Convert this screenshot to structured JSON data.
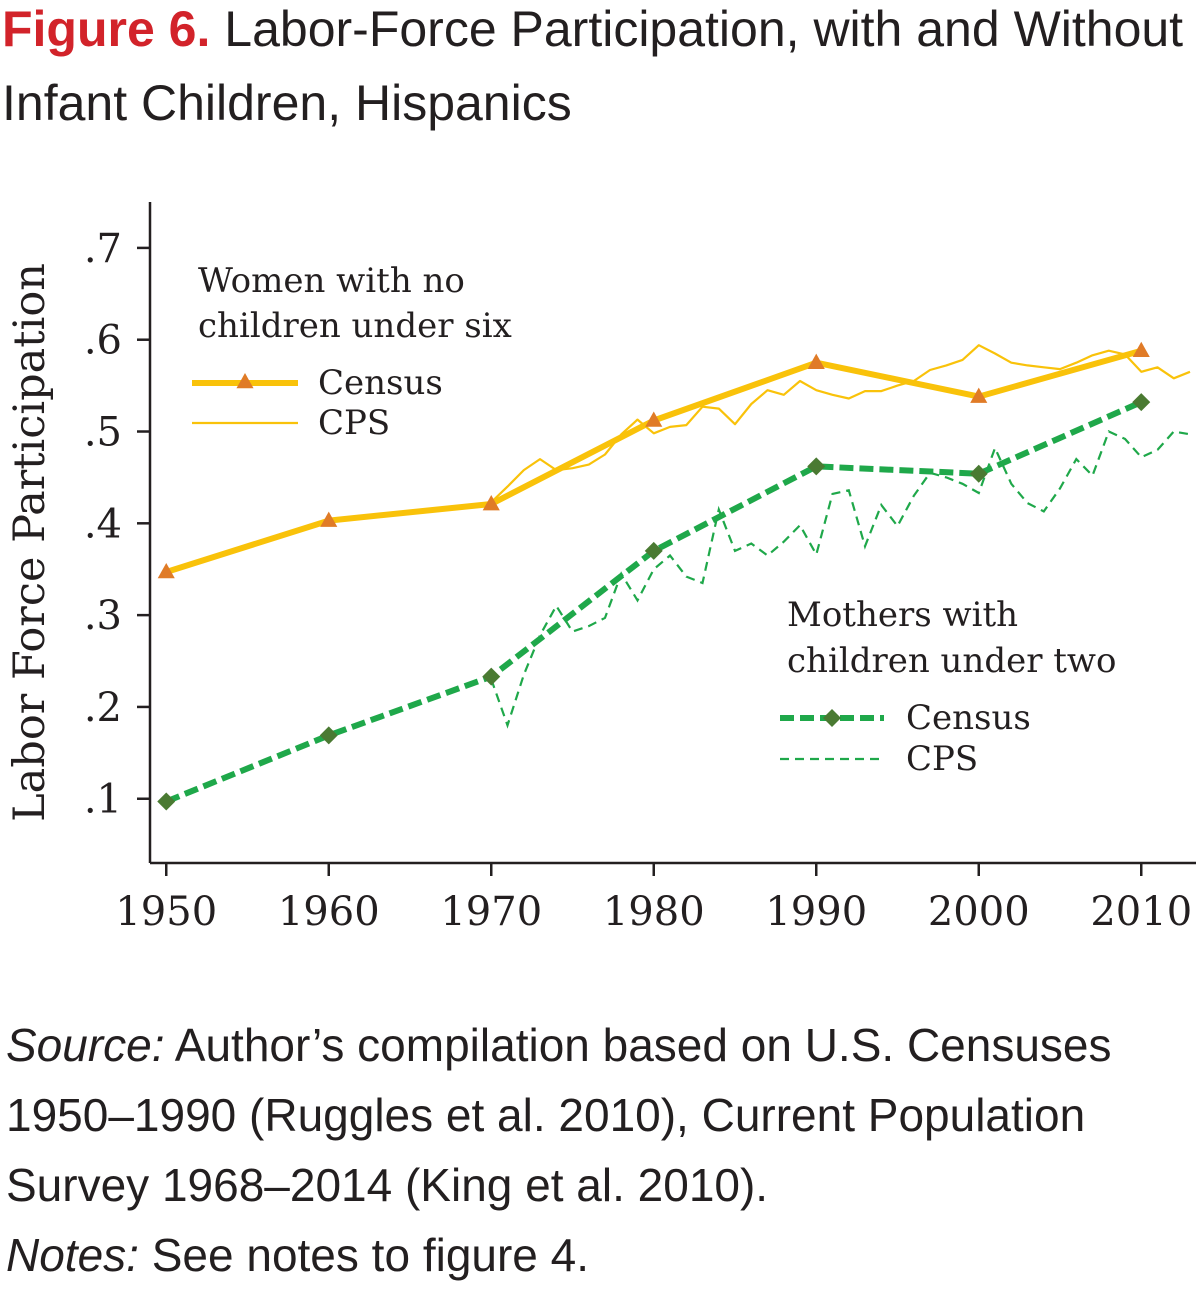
{
  "figure": {
    "label": "Figure 6.",
    "title": "Labor-Force Participation, with and Without Infant Children, Hispanics"
  },
  "footer": {
    "source_label": "Source:",
    "source_text": "Author’s compilation based on U.S. Censuses 1950–1990 (Ruggles et al. 2010), Current Population Survey 1968–2014 (King et al. 2010).",
    "notes_label": "Notes:",
    "notes_text": "See notes to figure 4."
  },
  "colors": {
    "yellow": "#f9c20a",
    "marker_orange": "#e07b27",
    "green": "#1fa84a",
    "marker_green": "#4a7a32",
    "axis": "#231f20"
  },
  "chart_data": {
    "type": "line",
    "title": "",
    "xlabel": "",
    "ylabel": "Labor Force Participation",
    "xlim": [
      1949,
      2013
    ],
    "ylim": [
      0.03,
      0.75
    ],
    "x_ticks": [
      1950,
      1960,
      1970,
      1980,
      1990,
      2000,
      2010
    ],
    "x_tick_labels": [
      "1950",
      "1960",
      "1970",
      "1980",
      "1990",
      "2000",
      "2010"
    ],
    "y_ticks": [
      0.1,
      0.2,
      0.3,
      0.4,
      0.5,
      0.6,
      0.7
    ],
    "y_tick_labels": [
      ".1",
      ".2",
      ".3",
      ".4",
      ".5",
      ".6",
      ".7"
    ],
    "grid": false,
    "legend_groups": [
      {
        "heading": [
          "Women with no",
          "children under six"
        ],
        "position": "top-left",
        "entries": [
          "Census",
          "CPS"
        ]
      },
      {
        "heading": [
          "Mothers with",
          "children under two"
        ],
        "position": "bottom-right",
        "entries": [
          "Census",
          "CPS"
        ]
      }
    ],
    "series": [
      {
        "name": "Census",
        "group": "Women with no children under six",
        "style": "thick-solid-triangle",
        "x": [
          1950,
          1960,
          1970,
          1980,
          1990,
          2000,
          2010
        ],
        "y": [
          0.347,
          0.403,
          0.421,
          0.512,
          0.575,
          0.538,
          0.588
        ]
      },
      {
        "name": "CPS",
        "group": "Women with no children under six",
        "style": "thin-solid",
        "x": [
          1970,
          1971,
          1972,
          1973,
          1974,
          1975,
          1976,
          1977,
          1978,
          1979,
          1980,
          1981,
          1982,
          1983,
          1984,
          1985,
          1986,
          1987,
          1988,
          1989,
          1990,
          1991,
          1992,
          1993,
          1994,
          1995,
          1996,
          1997,
          1998,
          1999,
          2000,
          2001,
          2002,
          2003,
          2004,
          2005,
          2006,
          2007,
          2008,
          2009,
          2010,
          2011,
          2012,
          2013
        ],
        "y": [
          0.423,
          0.44,
          0.458,
          0.47,
          0.458,
          0.46,
          0.464,
          0.475,
          0.497,
          0.513,
          0.498,
          0.505,
          0.507,
          0.527,
          0.525,
          0.508,
          0.53,
          0.545,
          0.54,
          0.555,
          0.545,
          0.54,
          0.536,
          0.544,
          0.544,
          0.55,
          0.555,
          0.567,
          0.572,
          0.578,
          0.594,
          0.585,
          0.575,
          0.572,
          0.57,
          0.568,
          0.575,
          0.583,
          0.588,
          0.584,
          0.565,
          0.57,
          0.558,
          0.565
        ]
      },
      {
        "name": "Census",
        "group": "Mothers with children under two",
        "style": "thick-dashed-diamond",
        "x": [
          1950,
          1960,
          1970,
          1980,
          1990,
          2000,
          2010
        ],
        "y": [
          0.097,
          0.169,
          0.233,
          0.37,
          0.462,
          0.454,
          0.532
        ]
      },
      {
        "name": "CPS",
        "group": "Mothers with children under two",
        "style": "thin-dashed",
        "x": [
          1970,
          1971,
          1972,
          1973,
          1974,
          1975,
          1976,
          1977,
          1978,
          1979,
          1980,
          1981,
          1982,
          1983,
          1984,
          1985,
          1986,
          1987,
          1988,
          1989,
          1990,
          1991,
          1992,
          1993,
          1994,
          1995,
          1996,
          1997,
          1998,
          1999,
          2000,
          2001,
          2002,
          2003,
          2004,
          2005,
          2006,
          2007,
          2008,
          2009,
          2010,
          2011,
          2012,
          2013
        ],
        "y": [
          0.23,
          0.18,
          0.235,
          0.278,
          0.31,
          0.282,
          0.288,
          0.297,
          0.345,
          0.316,
          0.35,
          0.365,
          0.342,
          0.335,
          0.415,
          0.37,
          0.378,
          0.365,
          0.38,
          0.398,
          0.366,
          0.432,
          0.436,
          0.375,
          0.42,
          0.397,
          0.43,
          0.455,
          0.45,
          0.443,
          0.433,
          0.482,
          0.443,
          0.422,
          0.413,
          0.438,
          0.47,
          0.452,
          0.5,
          0.492,
          0.472,
          0.48,
          0.5,
          0.497
        ]
      }
    ]
  }
}
